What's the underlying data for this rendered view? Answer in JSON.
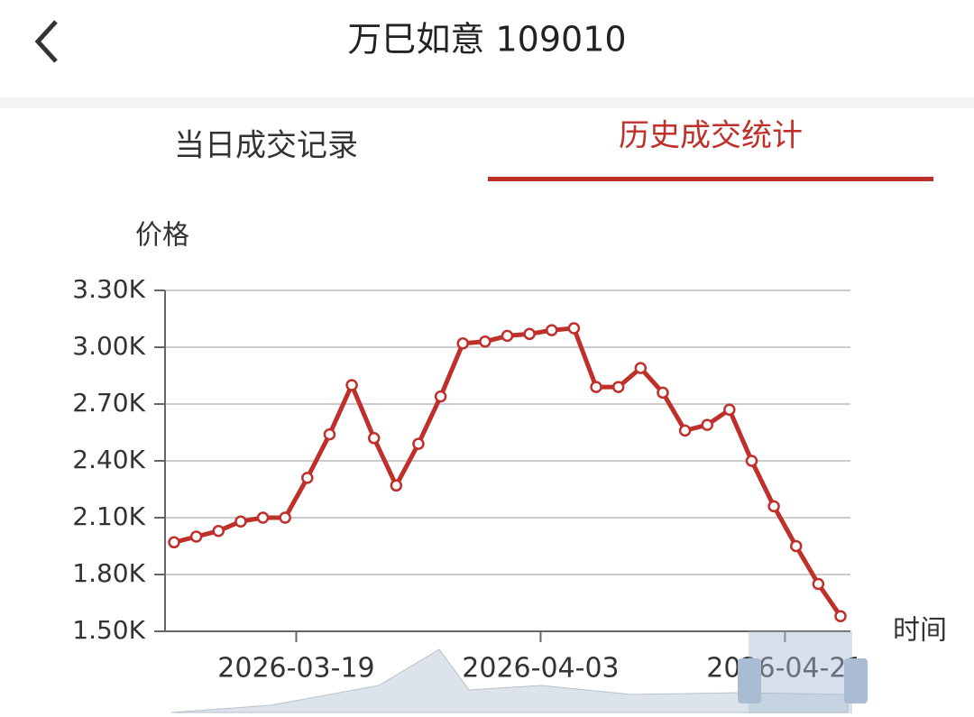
{
  "header": {
    "title": "万巳如意 109010"
  },
  "tabs": [
    "当日成交记录",
    "历史成交统计"
  ],
  "chart_data": {
    "type": "line",
    "y_label": "价格",
    "x_label": "时间",
    "categories": [
      null,
      null,
      null,
      null,
      null,
      "2026-03-19",
      null,
      null,
      null,
      null,
      null,
      null,
      null,
      null,
      null,
      null,
      "2026-04-03",
      null,
      null,
      null,
      null,
      null,
      null,
      null,
      null,
      null,
      null,
      "2026-04-21",
      null,
      null,
      null
    ],
    "series": [
      {
        "name": null,
        "color": "#c0302b",
        "values": [
          1970,
          2000,
          2030,
          2080,
          2100,
          2100,
          2310,
          2540,
          2800,
          2520,
          2270,
          2490,
          2740,
          3020,
          3030,
          3060,
          3070,
          3090,
          3100,
          2790,
          2790,
          2890,
          2760,
          2560,
          2590,
          2670,
          2400,
          2160,
          1950,
          1750,
          1580
        ]
      }
    ],
    "ylim": [
      1500,
      3300
    ],
    "yticks": [
      {
        "value": 1500,
        "label": "1.50K"
      },
      {
        "value": 1800,
        "label": "1.80K"
      },
      {
        "value": 2100,
        "label": "2.10K"
      },
      {
        "value": 2400,
        "label": "2.40K"
      },
      {
        "value": 2700,
        "label": "2.70K"
      },
      {
        "value": 3000,
        "label": "3.00K"
      },
      {
        "value": 3300,
        "label": "3.30K"
      }
    ],
    "grid": true
  }
}
